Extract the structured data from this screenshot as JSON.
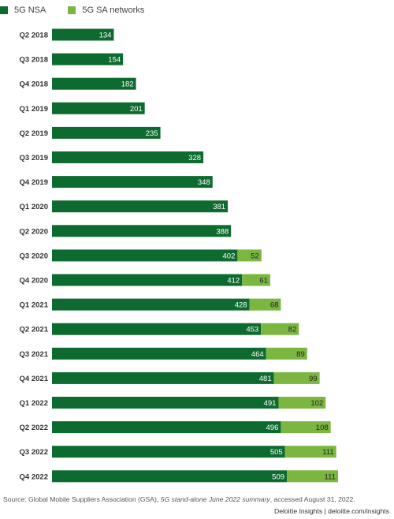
{
  "chart_data": {
    "type": "bar",
    "orientation": "horizontal",
    "stacked": true,
    "categories": [
      "Q2 2018",
      "Q3 2018",
      "Q4 2018",
      "Q1 2019",
      "Q2 2019",
      "Q3 2019",
      "Q4 2019",
      "Q1 2020",
      "Q2 2020",
      "Q3 2020",
      "Q4 2020",
      "Q1 2021",
      "Q2 2021",
      "Q3 2021",
      "Q4 2021",
      "Q1 2022",
      "Q2 2022",
      "Q3 2022",
      "Q4 2022"
    ],
    "series": [
      {
        "name": "5G NSA",
        "color": "#0e6b2f",
        "values": [
          134,
          154,
          182,
          201,
          235,
          328,
          348,
          381,
          388,
          402,
          412,
          428,
          453,
          464,
          481,
          491,
          496,
          505,
          509
        ]
      },
      {
        "name": "5G SA networks",
        "color": "#7ab640",
        "values": [
          null,
          null,
          null,
          null,
          null,
          null,
          null,
          null,
          null,
          52,
          61,
          68,
          82,
          89,
          99,
          102,
          108,
          111,
          111
        ]
      }
    ],
    "legend_position": "top-left",
    "grid": false
  },
  "source": {
    "prefix": "Source: Global Mobile Suppliers Association (GSA), ",
    "italic": "5G stand-alone June 2022 summary",
    "suffix": ", accessed August 31, 2022."
  },
  "footer": "Deloitte Insights | deloitte.com/insights"
}
